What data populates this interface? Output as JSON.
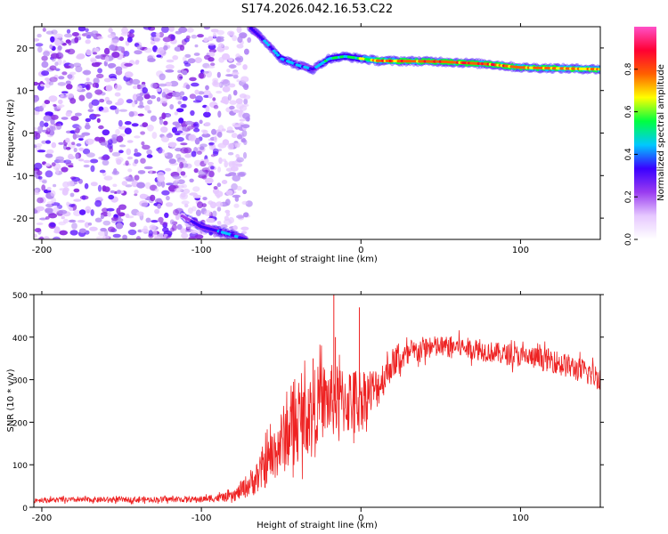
{
  "chart_data": [
    {
      "type": "heatmap",
      "title": "S174.2026.042.16.53.C22",
      "xlabel": "Height of straight line (km)",
      "ylabel": "Frequency (Hz)",
      "xlim": [
        -205,
        150
      ],
      "ylim": [
        -25,
        25
      ],
      "x_ticks": [
        -200,
        -100,
        0,
        100
      ],
      "y_ticks": [
        -20,
        -10,
        0,
        10,
        20
      ],
      "colorbar": {
        "label": "Normalized spectral amplitude",
        "range": [
          0,
          1
        ],
        "ticks": [
          0.0,
          0.2,
          0.4,
          0.6,
          0.8
        ],
        "colors": [
          "#ffffff",
          "#e6c8ff",
          "#9a3cf0",
          "#3a00ff",
          "#00c8ff",
          "#00ff40",
          "#ffff00",
          "#ff6000",
          "#ff0033",
          "#ff50c8"
        ]
      },
      "ridge": [
        {
          "x": -70,
          "y": 25,
          "amp": 0.35
        },
        {
          "x": -60,
          "y": 21.5,
          "amp": 0.45
        },
        {
          "x": -50,
          "y": 17.5,
          "amp": 0.5
        },
        {
          "x": -40,
          "y": 16,
          "amp": 0.5
        },
        {
          "x": -30,
          "y": 15,
          "amp": 0.45
        },
        {
          "x": -20,
          "y": 17.5,
          "amp": 0.55
        },
        {
          "x": -10,
          "y": 18,
          "amp": 0.6
        },
        {
          "x": 0,
          "y": 17.5,
          "amp": 0.65
        },
        {
          "x": 10,
          "y": 17,
          "amp": 0.85
        },
        {
          "x": 50,
          "y": 16.8,
          "amp": 0.9
        },
        {
          "x": 80,
          "y": 16.2,
          "amp": 0.9
        },
        {
          "x": 100,
          "y": 15.4,
          "amp": 0.85
        },
        {
          "x": 150,
          "y": 15,
          "amp": 0.8
        }
      ],
      "ridge_low": [
        {
          "x": -112,
          "y": -19.5,
          "amp": 0.3
        },
        {
          "x": -100,
          "y": -22,
          "amp": 0.4
        },
        {
          "x": -85,
          "y": -23.5,
          "amp": 0.5
        },
        {
          "x": -72,
          "y": -25,
          "amp": 0.4
        }
      ]
    },
    {
      "type": "line",
      "xlabel": "Height of straight line (km)",
      "ylabel": "SNR (10 * v/v)",
      "xlim": [
        -205,
        150
      ],
      "ylim": [
        0,
        500
      ],
      "x_ticks": [
        -200,
        -100,
        0,
        100
      ],
      "y_ticks": [
        0,
        100,
        200,
        300,
        400,
        500
      ],
      "color": "#ee2222",
      "profile": [
        {
          "x": -205,
          "mean": 17,
          "noise": 6
        },
        {
          "x": -100,
          "mean": 19,
          "noise": 7
        },
        {
          "x": -80,
          "mean": 25,
          "noise": 12
        },
        {
          "x": -65,
          "mean": 70,
          "noise": 40
        },
        {
          "x": -45,
          "mean": 180,
          "noise": 90
        },
        {
          "x": -25,
          "mean": 250,
          "noise": 90
        },
        {
          "x": -5,
          "mean": 250,
          "noise": 80
        },
        {
          "x": 10,
          "mean": 280,
          "noise": 50
        },
        {
          "x": 20,
          "mean": 340,
          "noise": 35
        },
        {
          "x": 40,
          "mean": 375,
          "noise": 28
        },
        {
          "x": 60,
          "mean": 378,
          "noise": 25
        },
        {
          "x": 90,
          "mean": 360,
          "noise": 25
        },
        {
          "x": 120,
          "mean": 345,
          "noise": 28
        },
        {
          "x": 150,
          "mean": 305,
          "noise": 30
        }
      ],
      "spikes": [
        {
          "x": -17,
          "value": 500
        },
        {
          "x": -16,
          "value": 400
        },
        {
          "x": -1,
          "value": 470
        },
        {
          "x": -30,
          "value": 350
        }
      ]
    }
  ]
}
